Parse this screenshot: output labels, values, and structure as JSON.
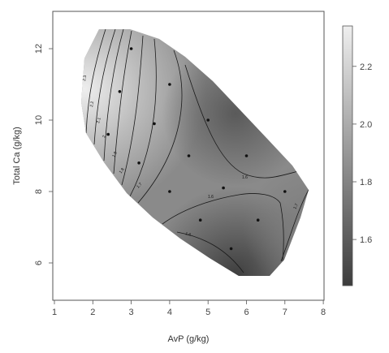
{
  "chart_data": {
    "type": "heatmap",
    "subtype": "contour",
    "title": "",
    "xlabel": "AvP (g/kg)",
    "ylabel": "Total Ca (g/kg)",
    "xlim": [
      1,
      8
    ],
    "ylim": [
      5,
      13
    ],
    "x_ticks": [
      "1",
      "2",
      "3",
      "4",
      "5",
      "6",
      "7",
      "8"
    ],
    "y_ticks": [
      "6",
      "8",
      "10",
      "12"
    ],
    "colorbar": {
      "range": [
        1.44,
        2.34
      ],
      "ticks": [
        "1.6",
        "1.8",
        "2.0",
        "2.2"
      ],
      "low_color": "#3c3c3c",
      "high_color": "#efefef"
    },
    "contour_labels": [
      "2.3",
      "2.2",
      "2.1",
      "2",
      "1.9",
      "1.8",
      "1.7",
      "1.6",
      "1.6",
      "1.6",
      "1.7"
    ],
    "design_points": [
      {
        "x": 3.0,
        "y": 12.0
      },
      {
        "x": 2.7,
        "y": 10.8
      },
      {
        "x": 4.0,
        "y": 11.0
      },
      {
        "x": 3.6,
        "y": 9.9
      },
      {
        "x": 2.4,
        "y": 9.6
      },
      {
        "x": 5.0,
        "y": 10.0
      },
      {
        "x": 4.5,
        "y": 9.0
      },
      {
        "x": 6.0,
        "y": 9.0
      },
      {
        "x": 3.2,
        "y": 8.8
      },
      {
        "x": 4.0,
        "y": 8.0
      },
      {
        "x": 5.4,
        "y": 8.1
      },
      {
        "x": 7.0,
        "y": 8.0
      },
      {
        "x": 4.8,
        "y": 7.2
      },
      {
        "x": 6.3,
        "y": 7.2
      },
      {
        "x": 5.6,
        "y": 6.4
      }
    ]
  },
  "colors": {
    "frame": "#555555",
    "contour": "#1a1a1a",
    "point": "#111111"
  }
}
